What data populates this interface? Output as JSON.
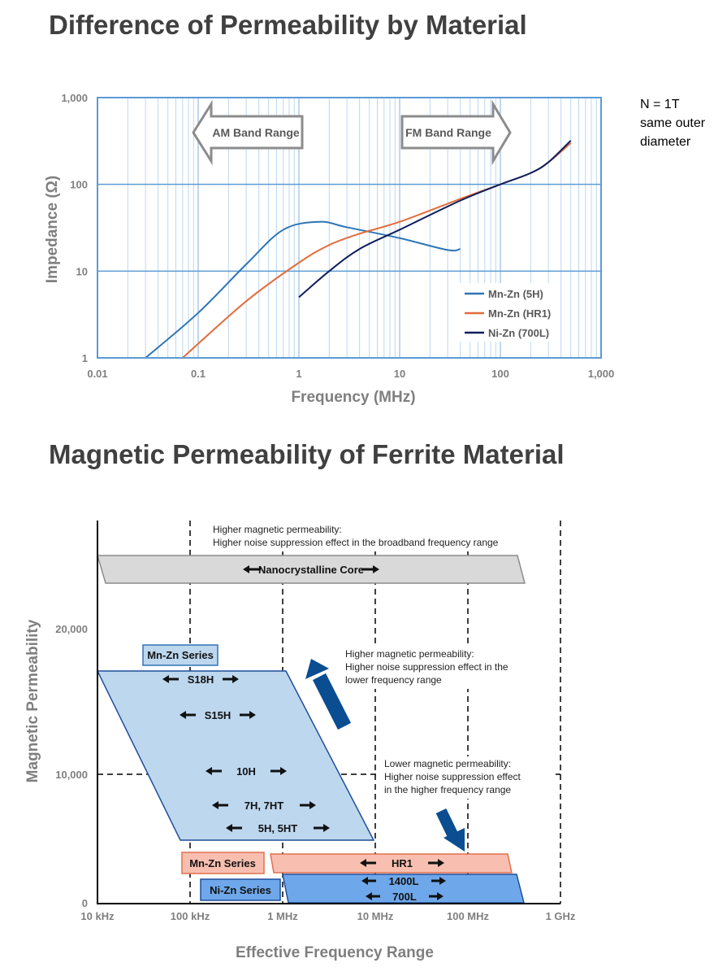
{
  "titles": {
    "top": "Difference of Permeability by Material",
    "bottom": "Magnetic Permeability of Ferrite Material"
  },
  "chart_data": [
    {
      "type": "line",
      "xlabel": "Frequency (MHz)",
      "ylabel": "Impedance (Ω)",
      "xscale": "log",
      "yscale": "log",
      "xlim": [
        0.01,
        1000
      ],
      "ylim": [
        1,
        1000
      ],
      "x_tick_labels": [
        "0.01",
        "0.1",
        "1",
        "10",
        "100",
        "1,000"
      ],
      "y_tick_labels": [
        "1",
        "10",
        "100",
        "1,000"
      ],
      "grid": true,
      "legend": "bottom-right",
      "note": [
        "N = 1T",
        "same outer",
        "diameter"
      ],
      "annotations": [
        "AM Band Range",
        "FM Band Range"
      ],
      "series": [
        {
          "name": "Mn-Zn (5H)",
          "color": "#2e75b6",
          "x": [
            0.03,
            0.1,
            0.3,
            0.7,
            1.6,
            3,
            10,
            30,
            40
          ],
          "y": [
            1,
            3.3,
            12,
            30,
            37,
            32,
            24,
            17.5,
            18
          ]
        },
        {
          "name": "Mn-Zn (HR1)",
          "color": "#e46c3c",
          "x": [
            0.07,
            0.3,
            1,
            2,
            4,
            10,
            40,
            100,
            200,
            300,
            500
          ],
          "y": [
            1,
            4.5,
            12.5,
            20,
            27,
            37,
            68,
            100,
            135,
            180,
            300
          ]
        },
        {
          "name": "Ni-Zn (700L)",
          "color": "#0f1f5c",
          "x": [
            1,
            2,
            4,
            10,
            40,
            100,
            200,
            300,
            500
          ],
          "y": [
            5,
            10,
            18,
            30,
            65,
            100,
            135,
            180,
            320
          ]
        }
      ]
    },
    {
      "type": "range",
      "xlabel": "Effective Frequency Range",
      "ylabel": "Magnetic Permeability",
      "xscale": "log",
      "x_tick_labels": [
        "10 kHz",
        "100 kHz",
        "1 MHz",
        "10 MHz",
        "100 MHz",
        "1 GHz"
      ],
      "y_tick_labels": [
        "0",
        "10,000",
        "20,000"
      ],
      "groups": [
        {
          "name": "Nanocrystalline Core",
          "items": [
            "Nanocrystalline Core"
          ],
          "color": "#d9d9d9"
        },
        {
          "name": "Mn-Zn Series",
          "items": [
            "S18H",
            "S15H",
            "10H",
            "7H, 7HT",
            "5H, 5HT"
          ],
          "color": "#bdd7ee"
        },
        {
          "name": "Mn-Zn Series",
          "items": [
            "HR1"
          ],
          "color": "#f8bfb0"
        },
        {
          "name": "Ni-Zn Series",
          "items": [
            "1400L",
            "700L"
          ],
          "color": "#6fa8ea"
        }
      ],
      "notes": {
        "broadband": [
          "Higher magnetic permeability:",
          "Higher noise suppression effect in the broadband frequency range"
        ],
        "low": [
          "Higher magnetic permeability:",
          "Higher noise suppression effect in the",
          "lower frequency range"
        ],
        "high": [
          "Lower magnetic permeability:",
          "Higher noise suppression effect",
          "in the higher frequency range"
        ]
      }
    }
  ]
}
